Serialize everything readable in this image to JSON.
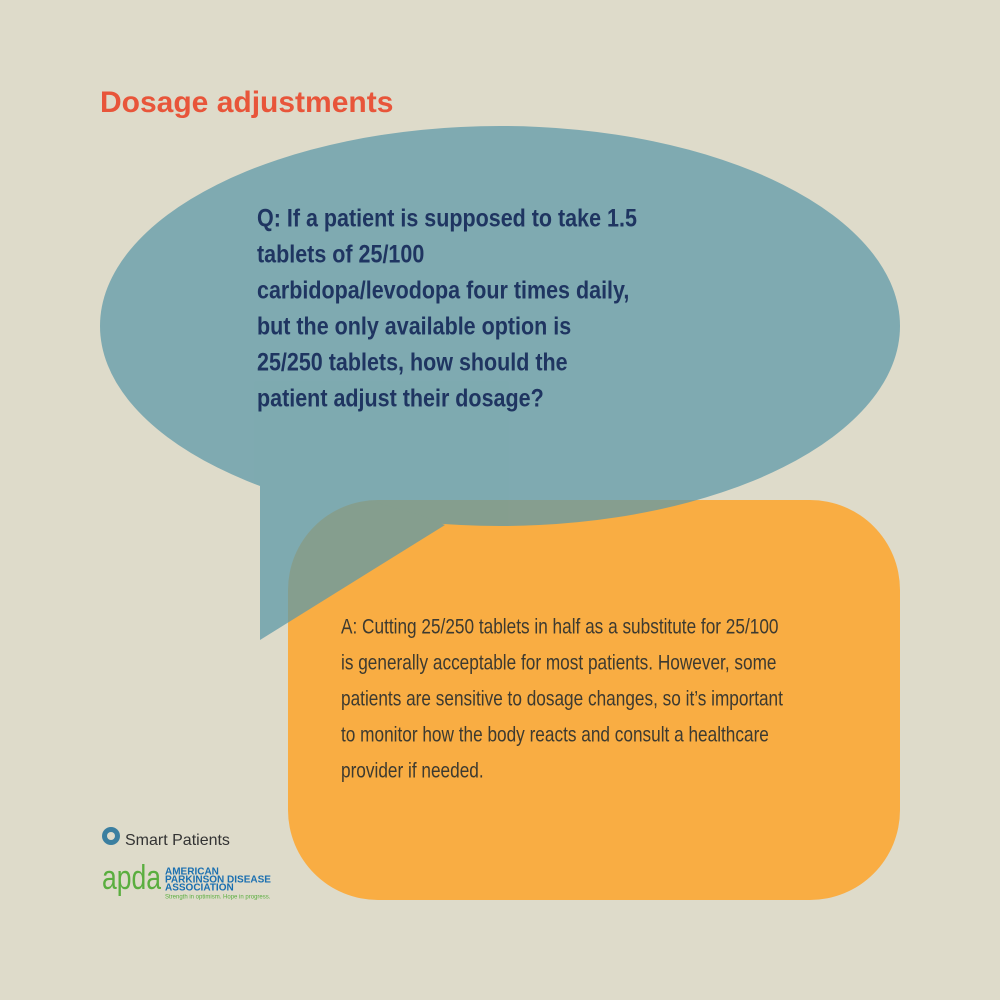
{
  "title": "Dosage adjustments",
  "question_lines": [
    "Q:  If a patient is supposed to take 1.5",
    "tablets of 25/100",
    "carbidopa/levodopa four times daily,",
    "but the only available option is",
    "25/250 tablets, how should the",
    "patient adjust their dosage?"
  ],
  "answer_lines": [
    "A: Cutting 25/250 tablets in half as a substitute for 25/100",
    "is generally acceptable for most patients. However, some",
    "patients are sensitive to dosage changes, so it’s important",
    "to monitor how the body reacts and consult a healthcare",
    "provider if needed."
  ],
  "logos": {
    "smart_patients": "Smart Patients",
    "apda": {
      "mark": "apda",
      "name_lines": [
        "AMERICAN",
        "PARKINSON DISEASE",
        "ASSOCIATION"
      ],
      "tagline": "Strength in optimism. Hope in progress."
    }
  }
}
